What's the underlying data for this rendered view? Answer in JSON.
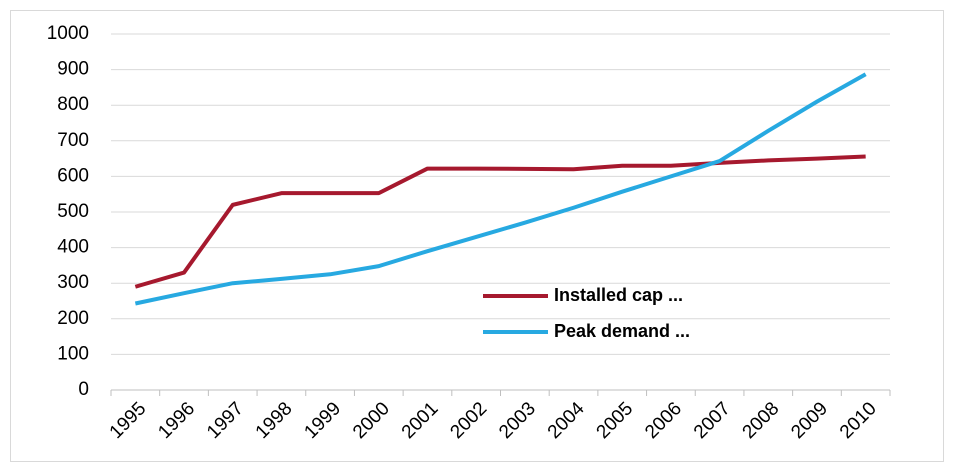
{
  "chart_data": {
    "type": "line",
    "categories": [
      "1995",
      "1996",
      "1997",
      "1998",
      "1999",
      "2000",
      "2001",
      "2002",
      "2003",
      "2004",
      "2005",
      "2006",
      "2007",
      "2008",
      "2009",
      "2010"
    ],
    "series": [
      {
        "name": "Installed cap ...",
        "color": "#a6192e",
        "values": [
          290,
          330,
          520,
          553,
          553,
          553,
          622,
          622,
          621,
          620,
          630,
          630,
          638,
          645,
          650,
          656
        ]
      },
      {
        "name": "Peak demand ...",
        "color": "#27a9e1",
        "values": [
          243,
          272,
          300,
          312,
          325,
          348,
          390,
          430,
          470,
          512,
          557,
          600,
          643,
          728,
          810,
          887
        ]
      }
    ],
    "ylim": [
      0,
      1000
    ],
    "yticks": [
      0,
      100,
      200,
      300,
      400,
      500,
      600,
      700,
      800,
      900,
      1000
    ],
    "grid": true
  }
}
